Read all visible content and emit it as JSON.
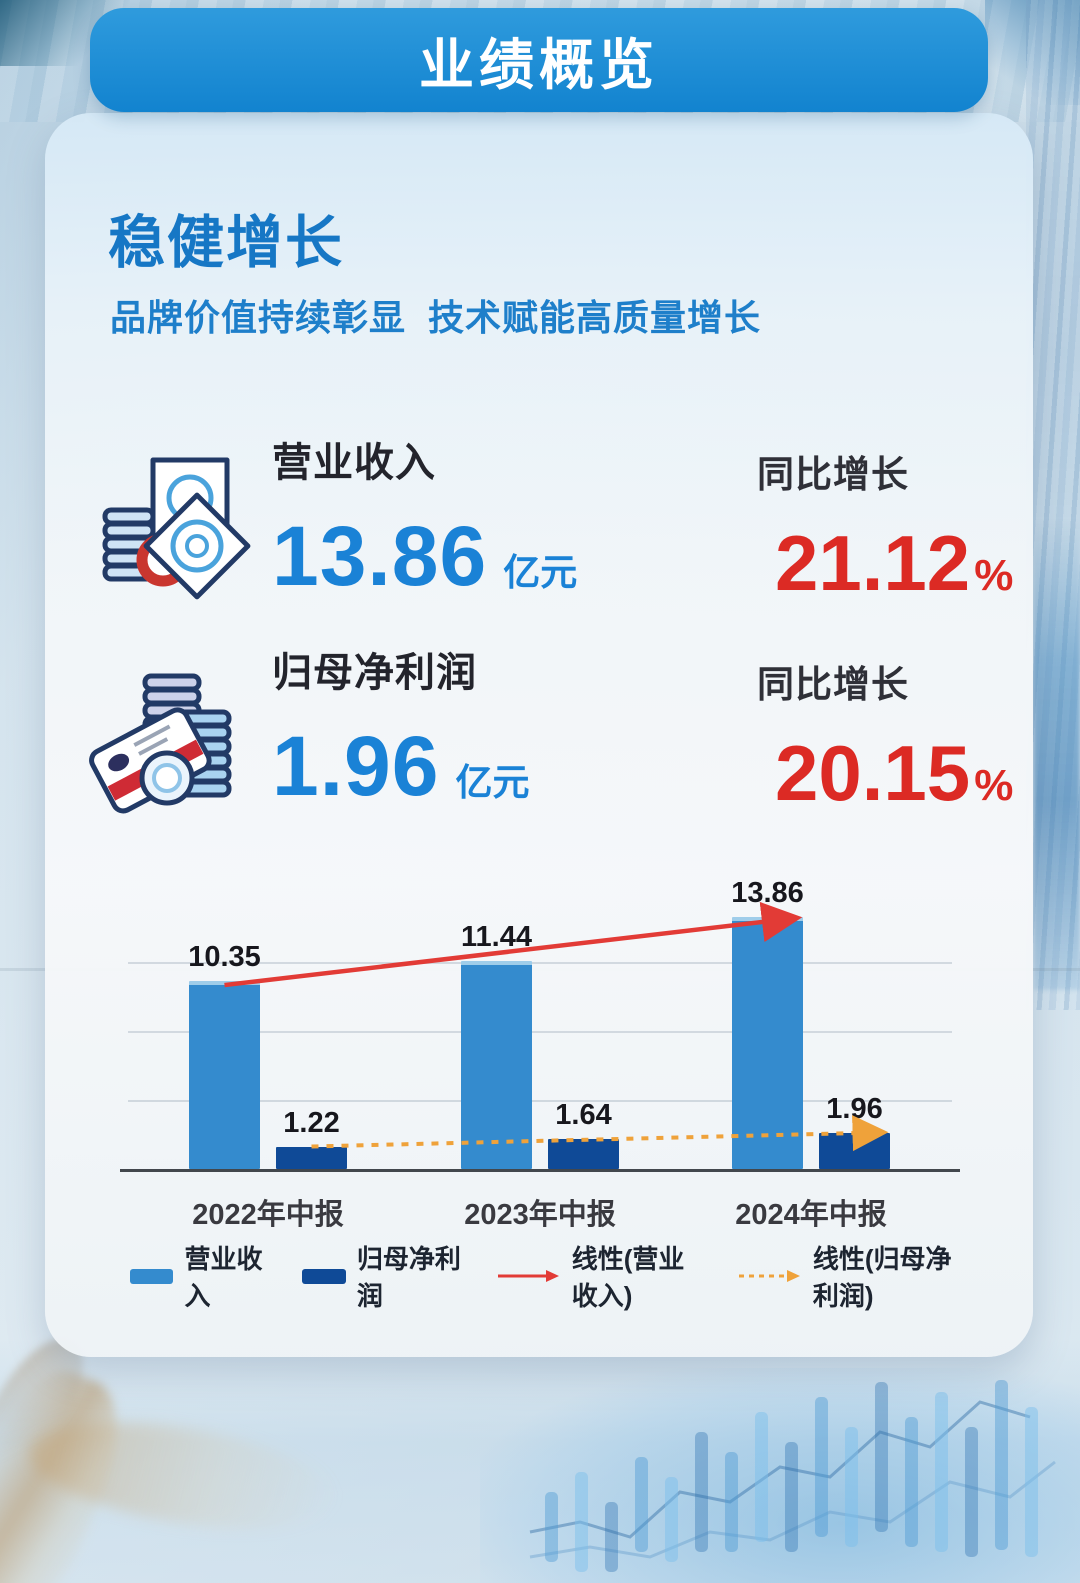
{
  "banner": {
    "title": "业绩概览"
  },
  "overview": {
    "heading": "稳健增长",
    "subtitle": "品牌价值持续彰显  技术赋能高质量增长"
  },
  "metrics": [
    {
      "icon": "revenue-icon",
      "label": "营业收入",
      "value": "13.86",
      "unit": "亿元",
      "growth_label": "同比增长",
      "growth_value": "21.12",
      "growth_unit": "%"
    },
    {
      "icon": "net-profit-icon",
      "label": "归母净利润",
      "value": "1.96",
      "unit": "亿元",
      "growth_label": "同比增长",
      "growth_value": "20.15",
      "growth_unit": "%"
    }
  ],
  "chart_data": {
    "type": "bar",
    "categories": [
      "2022年中报",
      "2023年中报",
      "2024年中报"
    ],
    "series": [
      {
        "name": "营业收入",
        "values": [
          10.35,
          11.44,
          13.86
        ],
        "color": "#348bce"
      },
      {
        "name": "归母净利润",
        "values": [
          1.22,
          1.64,
          1.96
        ],
        "color": "#0f4a97"
      }
    ],
    "trendlines": [
      {
        "name": "线性(营业收入)",
        "fit_of": "营业收入",
        "style": "solid",
        "color": "#e23b36"
      },
      {
        "name": "线性(归母净利润)",
        "fit_of": "归母净利润",
        "style": "dashed",
        "color": "#efa23a"
      }
    ],
    "legend": [
      "营业收入",
      "归母净利润",
      "线性(营业收入)",
      "线性(归母净利润)"
    ],
    "value_labels": true,
    "grid": true,
    "ylim": [
      0,
      16
    ],
    "unit": "亿元"
  },
  "colors": {
    "banner_blue": "#1b8dd5",
    "heading_blue": "#1677c5",
    "value_blue": "#1a82d6",
    "growth_red": "#dc2a24",
    "bar_light": "#348bce",
    "bar_dark": "#0f4a97",
    "trend_red": "#e23b36",
    "trend_orange": "#efa23a"
  }
}
